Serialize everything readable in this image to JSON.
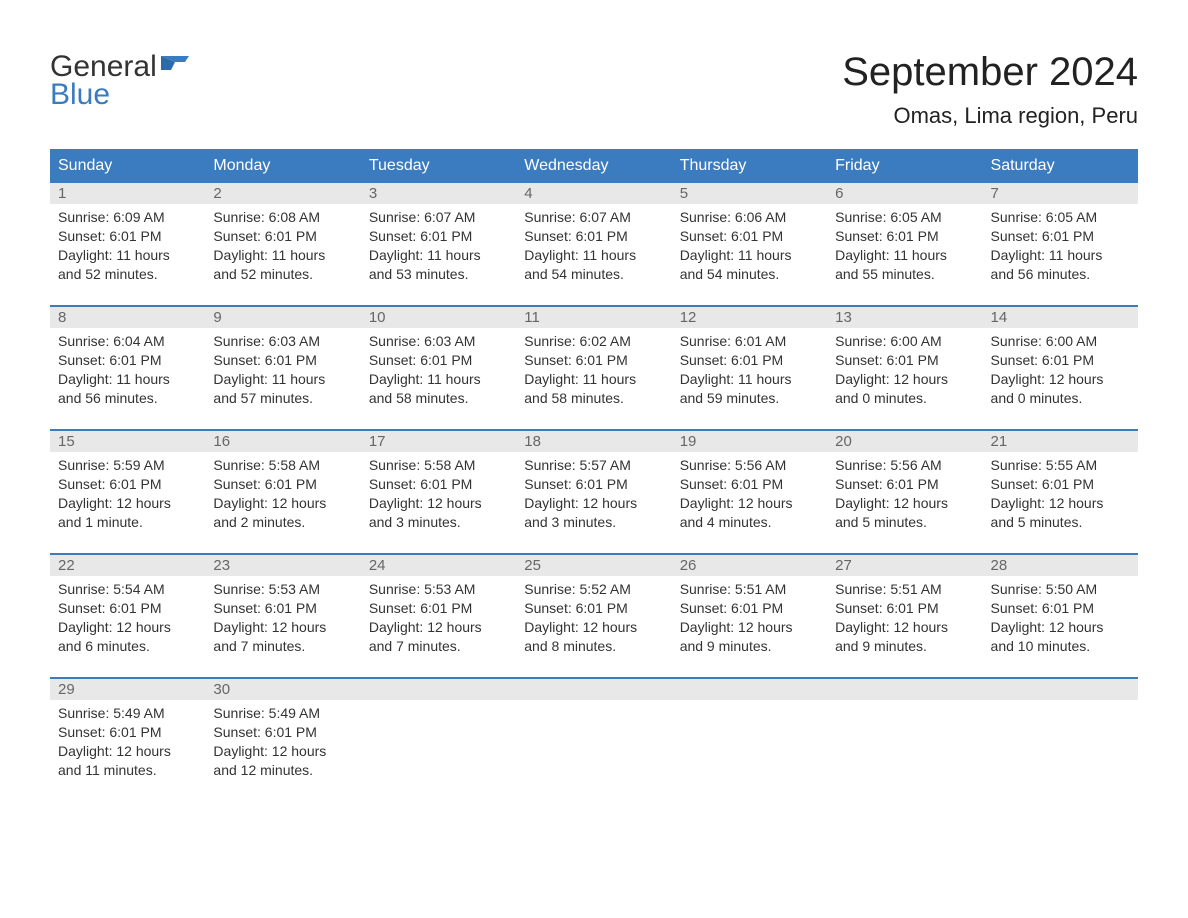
{
  "logo": {
    "text1": "General",
    "text2": "Blue",
    "icon_color": "#3b7bbf"
  },
  "title": "September 2024",
  "location": "Omas, Lima region, Peru",
  "colors": {
    "header_bg": "#3b7bbf",
    "header_text": "#ffffff",
    "daynum_bg": "#e8e8e8",
    "daynum_text": "#666666",
    "body_text": "#333333",
    "border_top": "#3b7bbf"
  },
  "day_headers": [
    "Sunday",
    "Monday",
    "Tuesday",
    "Wednesday",
    "Thursday",
    "Friday",
    "Saturday"
  ],
  "weeks": [
    [
      {
        "num": "1",
        "sunrise": "Sunrise: 6:09 AM",
        "sunset": "Sunset: 6:01 PM",
        "daylight1": "Daylight: 11 hours",
        "daylight2": "and 52 minutes."
      },
      {
        "num": "2",
        "sunrise": "Sunrise: 6:08 AM",
        "sunset": "Sunset: 6:01 PM",
        "daylight1": "Daylight: 11 hours",
        "daylight2": "and 52 minutes."
      },
      {
        "num": "3",
        "sunrise": "Sunrise: 6:07 AM",
        "sunset": "Sunset: 6:01 PM",
        "daylight1": "Daylight: 11 hours",
        "daylight2": "and 53 minutes."
      },
      {
        "num": "4",
        "sunrise": "Sunrise: 6:07 AM",
        "sunset": "Sunset: 6:01 PM",
        "daylight1": "Daylight: 11 hours",
        "daylight2": "and 54 minutes."
      },
      {
        "num": "5",
        "sunrise": "Sunrise: 6:06 AM",
        "sunset": "Sunset: 6:01 PM",
        "daylight1": "Daylight: 11 hours",
        "daylight2": "and 54 minutes."
      },
      {
        "num": "6",
        "sunrise": "Sunrise: 6:05 AM",
        "sunset": "Sunset: 6:01 PM",
        "daylight1": "Daylight: 11 hours",
        "daylight2": "and 55 minutes."
      },
      {
        "num": "7",
        "sunrise": "Sunrise: 6:05 AM",
        "sunset": "Sunset: 6:01 PM",
        "daylight1": "Daylight: 11 hours",
        "daylight2": "and 56 minutes."
      }
    ],
    [
      {
        "num": "8",
        "sunrise": "Sunrise: 6:04 AM",
        "sunset": "Sunset: 6:01 PM",
        "daylight1": "Daylight: 11 hours",
        "daylight2": "and 56 minutes."
      },
      {
        "num": "9",
        "sunrise": "Sunrise: 6:03 AM",
        "sunset": "Sunset: 6:01 PM",
        "daylight1": "Daylight: 11 hours",
        "daylight2": "and 57 minutes."
      },
      {
        "num": "10",
        "sunrise": "Sunrise: 6:03 AM",
        "sunset": "Sunset: 6:01 PM",
        "daylight1": "Daylight: 11 hours",
        "daylight2": "and 58 minutes."
      },
      {
        "num": "11",
        "sunrise": "Sunrise: 6:02 AM",
        "sunset": "Sunset: 6:01 PM",
        "daylight1": "Daylight: 11 hours",
        "daylight2": "and 58 minutes."
      },
      {
        "num": "12",
        "sunrise": "Sunrise: 6:01 AM",
        "sunset": "Sunset: 6:01 PM",
        "daylight1": "Daylight: 11 hours",
        "daylight2": "and 59 minutes."
      },
      {
        "num": "13",
        "sunrise": "Sunrise: 6:00 AM",
        "sunset": "Sunset: 6:01 PM",
        "daylight1": "Daylight: 12 hours",
        "daylight2": "and 0 minutes."
      },
      {
        "num": "14",
        "sunrise": "Sunrise: 6:00 AM",
        "sunset": "Sunset: 6:01 PM",
        "daylight1": "Daylight: 12 hours",
        "daylight2": "and 0 minutes."
      }
    ],
    [
      {
        "num": "15",
        "sunrise": "Sunrise: 5:59 AM",
        "sunset": "Sunset: 6:01 PM",
        "daylight1": "Daylight: 12 hours",
        "daylight2": "and 1 minute."
      },
      {
        "num": "16",
        "sunrise": "Sunrise: 5:58 AM",
        "sunset": "Sunset: 6:01 PM",
        "daylight1": "Daylight: 12 hours",
        "daylight2": "and 2 minutes."
      },
      {
        "num": "17",
        "sunrise": "Sunrise: 5:58 AM",
        "sunset": "Sunset: 6:01 PM",
        "daylight1": "Daylight: 12 hours",
        "daylight2": "and 3 minutes."
      },
      {
        "num": "18",
        "sunrise": "Sunrise: 5:57 AM",
        "sunset": "Sunset: 6:01 PM",
        "daylight1": "Daylight: 12 hours",
        "daylight2": "and 3 minutes."
      },
      {
        "num": "19",
        "sunrise": "Sunrise: 5:56 AM",
        "sunset": "Sunset: 6:01 PM",
        "daylight1": "Daylight: 12 hours",
        "daylight2": "and 4 minutes."
      },
      {
        "num": "20",
        "sunrise": "Sunrise: 5:56 AM",
        "sunset": "Sunset: 6:01 PM",
        "daylight1": "Daylight: 12 hours",
        "daylight2": "and 5 minutes."
      },
      {
        "num": "21",
        "sunrise": "Sunrise: 5:55 AM",
        "sunset": "Sunset: 6:01 PM",
        "daylight1": "Daylight: 12 hours",
        "daylight2": "and 5 minutes."
      }
    ],
    [
      {
        "num": "22",
        "sunrise": "Sunrise: 5:54 AM",
        "sunset": "Sunset: 6:01 PM",
        "daylight1": "Daylight: 12 hours",
        "daylight2": "and 6 minutes."
      },
      {
        "num": "23",
        "sunrise": "Sunrise: 5:53 AM",
        "sunset": "Sunset: 6:01 PM",
        "daylight1": "Daylight: 12 hours",
        "daylight2": "and 7 minutes."
      },
      {
        "num": "24",
        "sunrise": "Sunrise: 5:53 AM",
        "sunset": "Sunset: 6:01 PM",
        "daylight1": "Daylight: 12 hours",
        "daylight2": "and 7 minutes."
      },
      {
        "num": "25",
        "sunrise": "Sunrise: 5:52 AM",
        "sunset": "Sunset: 6:01 PM",
        "daylight1": "Daylight: 12 hours",
        "daylight2": "and 8 minutes."
      },
      {
        "num": "26",
        "sunrise": "Sunrise: 5:51 AM",
        "sunset": "Sunset: 6:01 PM",
        "daylight1": "Daylight: 12 hours",
        "daylight2": "and 9 minutes."
      },
      {
        "num": "27",
        "sunrise": "Sunrise: 5:51 AM",
        "sunset": "Sunset: 6:01 PM",
        "daylight1": "Daylight: 12 hours",
        "daylight2": "and 9 minutes."
      },
      {
        "num": "28",
        "sunrise": "Sunrise: 5:50 AM",
        "sunset": "Sunset: 6:01 PM",
        "daylight1": "Daylight: 12 hours",
        "daylight2": "and 10 minutes."
      }
    ],
    [
      {
        "num": "29",
        "sunrise": "Sunrise: 5:49 AM",
        "sunset": "Sunset: 6:01 PM",
        "daylight1": "Daylight: 12 hours",
        "daylight2": "and 11 minutes."
      },
      {
        "num": "30",
        "sunrise": "Sunrise: 5:49 AM",
        "sunset": "Sunset: 6:01 PM",
        "daylight1": "Daylight: 12 hours",
        "daylight2": "and 12 minutes."
      },
      {
        "empty": true
      },
      {
        "empty": true
      },
      {
        "empty": true
      },
      {
        "empty": true
      },
      {
        "empty": true
      }
    ]
  ]
}
